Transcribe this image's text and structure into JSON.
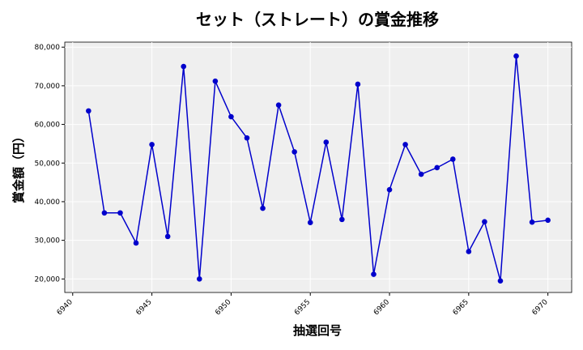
{
  "chart_data": {
    "type": "line",
    "title": "セット（ストレート）の賞金推移",
    "xlabel": "抽選回号",
    "ylabel": "賞金額（円）",
    "x": [
      6941,
      6942,
      6943,
      6944,
      6945,
      6946,
      6947,
      6948,
      6949,
      6950,
      6951,
      6952,
      6953,
      6954,
      6955,
      6956,
      6957,
      6958,
      6959,
      6960,
      6961,
      6962,
      6963,
      6964,
      6965,
      6966,
      6967,
      6968,
      6969,
      6970
    ],
    "series": [
      {
        "values": [
          63500,
          37100,
          37100,
          29300,
          54800,
          31000,
          75000,
          20000,
          71200,
          62000,
          56500,
          38300,
          65000,
          52900,
          34600,
          55400,
          35400,
          70400,
          21200,
          43100,
          54800,
          47100,
          48800,
          51000,
          27100,
          34800,
          19500,
          77700,
          34700,
          35200
        ]
      }
    ],
    "xlim": [
      6939.5,
      6971.5
    ],
    "ylim": [
      16500,
      81300
    ],
    "x_ticks": [
      "6940",
      "6945",
      "6950",
      "6955",
      "6960",
      "6965",
      "6970"
    ],
    "y_ticks": [
      "20,000",
      "30,000",
      "40,000",
      "50,000",
      "60,000",
      "70,000",
      "80,000"
    ],
    "grid": true,
    "colors": {
      "line": "#0000cc",
      "plot_background": "#efefef",
      "grid": "#ffffff"
    }
  }
}
